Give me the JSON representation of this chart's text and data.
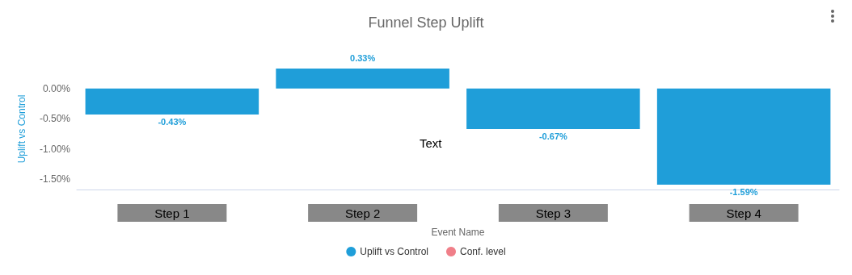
{
  "chart_data": {
    "type": "bar",
    "title": "Funnel Step Uplift",
    "xlabel": "Event Name",
    "ylabel": "Uplift vs Control",
    "categories": [
      "Step 1",
      "Step 2",
      "Step 3",
      "Step 4"
    ],
    "series": [
      {
        "name": "Uplift vs Control",
        "color": "#1f9ed9",
        "values": [
          -0.43,
          0.33,
          -0.67,
          -1.59
        ],
        "value_labels": [
          "-0.43%",
          "0.33%",
          "-0.67%",
          "-1.59%"
        ]
      },
      {
        "name": "Conf. level",
        "color": "#f07f89",
        "values": [
          null,
          null,
          null,
          null
        ]
      }
    ],
    "yticks": [
      {
        "value": 0,
        "label": "0.00%"
      },
      {
        "value": -0.5,
        "label": "-0.50%"
      },
      {
        "value": -1,
        "label": "-1.00%"
      },
      {
        "value": -1.5,
        "label": "-1.50%"
      }
    ],
    "ylim": [
      -1.67,
      0.33
    ],
    "grid": false,
    "legend": "bottom",
    "annotations": [
      "Text"
    ]
  }
}
